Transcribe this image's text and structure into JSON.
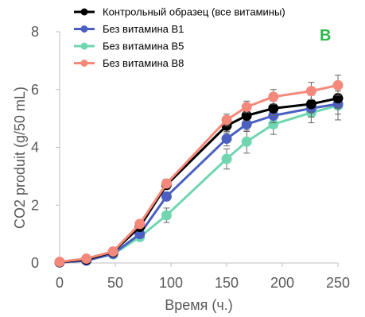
{
  "chart_data": {
    "type": "line",
    "panel_label": "B",
    "xlabel": "Время (ч.)",
    "ylabel": "CO2 produit (g/50 mL)",
    "xlim": [
      0,
      250
    ],
    "ylim": [
      0,
      8
    ],
    "xticks": [
      0,
      50,
      100,
      150,
      200,
      250
    ],
    "yticks": [
      0,
      2,
      4,
      6,
      8
    ],
    "grid": false,
    "legend_position": "top",
    "series": [
      {
        "name": "Контрольный образец (все витамины)",
        "color": "#000000",
        "x": [
          0,
          24,
          48,
          72,
          96,
          150,
          168,
          192,
          226,
          250
        ],
        "y": [
          0.03,
          0.12,
          0.38,
          1.25,
          2.7,
          4.75,
          5.1,
          5.35,
          5.5,
          5.7
        ],
        "err": [
          0,
          0,
          0.05,
          0.1,
          0.15,
          0.25,
          0.2,
          0.25,
          0.3,
          0.35
        ]
      },
      {
        "name": "Без витамина B1",
        "color": "#4a5fc1",
        "x": [
          0,
          24,
          48,
          72,
          96,
          150,
          168,
          192,
          226,
          250
        ],
        "y": [
          0.02,
          0.08,
          0.32,
          1.0,
          2.3,
          4.3,
          4.8,
          5.1,
          5.35,
          5.5
        ],
        "err": [
          0,
          0,
          0.05,
          0.1,
          0.15,
          0.25,
          0.25,
          0.25,
          0.3,
          0.35
        ]
      },
      {
        "name": "Без витамина B5",
        "color": "#6fd6b0",
        "x": [
          0,
          24,
          48,
          72,
          96,
          150,
          168,
          192,
          226,
          250
        ],
        "y": [
          0.02,
          0.1,
          0.3,
          0.9,
          1.65,
          3.6,
          4.2,
          4.8,
          5.2,
          5.45
        ],
        "err": [
          0,
          0,
          0.05,
          0.1,
          0.25,
          0.35,
          0.4,
          0.35,
          0.35,
          0.5
        ]
      },
      {
        "name": "Без витамина B8",
        "color": "#f4897b",
        "x": [
          0,
          24,
          48,
          72,
          96,
          150,
          168,
          192,
          226,
          250
        ],
        "y": [
          0.04,
          0.15,
          0.4,
          1.35,
          2.75,
          4.95,
          5.4,
          5.75,
          5.95,
          6.15
        ],
        "err": [
          0,
          0,
          0.05,
          0.1,
          0.15,
          0.2,
          0.2,
          0.25,
          0.3,
          0.35
        ]
      }
    ],
    "colors": {
      "axis": "#bfbfbf",
      "text": "#595959",
      "panel_label": "#2db84d",
      "error_bar": "#666666"
    }
  }
}
